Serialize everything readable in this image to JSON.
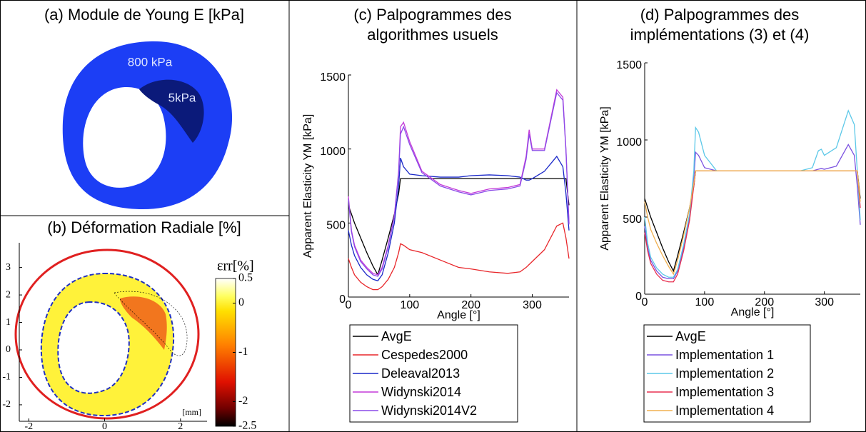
{
  "panel_a": {
    "title": "(a) Module de Young E [kPa]",
    "labels": [
      "800 kPa",
      "5kPa"
    ]
  },
  "chart_data": [
    {
      "type": "heatmap",
      "title": "(b) Déformation Radiale [%]",
      "colorbar_label": "εrr[%]",
      "unit_label": "[mm]",
      "xlim": [
        -2.25,
        2.7
      ],
      "xticks": [
        -2,
        0,
        2
      ],
      "ylim": [
        -2.6,
        3.9
      ],
      "yticks": [
        -2,
        -1,
        0,
        1,
        2,
        3
      ],
      "colorbar_lim": [
        -2.5,
        0.5
      ],
      "colorbar_ticks": [
        -2.5,
        -2,
        -1,
        0,
        0.5
      ]
    },
    {
      "type": "line",
      "title": [
        "(c) Palpogrammes des",
        "algorithmes usuels"
      ],
      "xlabel": "Angle [°]",
      "ylabel": "Apparent Elasticity YM [kPa]",
      "xlim": [
        0,
        360
      ],
      "xticks": [
        0,
        100,
        200,
        300
      ],
      "ylim": [
        0,
        1500
      ],
      "yticks": [
        0,
        500,
        1000,
        1500
      ],
      "x": [
        0,
        5,
        10,
        20,
        30,
        40,
        48,
        55,
        65,
        75,
        82,
        85,
        90,
        100,
        120,
        150,
        180,
        200,
        230,
        260,
        280,
        290,
        295,
        300,
        320,
        340,
        350,
        355,
        360
      ],
      "series": [
        {
          "name": "AvgE",
          "color": "#000000",
          "values": [
            620,
            560,
            500,
            400,
            300,
            210,
            150,
            250,
            400,
            560,
            700,
            800,
            800,
            800,
            800,
            800,
            800,
            800,
            800,
            800,
            800,
            800,
            800,
            800,
            800,
            800,
            800,
            800,
            620
          ]
        },
        {
          "name": "Cespedes2000",
          "color": "#e8262a",
          "values": [
            260,
            200,
            150,
            100,
            70,
            50,
            50,
            70,
            120,
            200,
            300,
            360,
            350,
            320,
            300,
            250,
            200,
            190,
            170,
            160,
            170,
            200,
            220,
            240,
            320,
            480,
            500,
            400,
            260
          ]
        },
        {
          "name": "Deleaval2013",
          "color": "#1a28c8",
          "values": [
            450,
            350,
            280,
            200,
            150,
            120,
            110,
            150,
            300,
            500,
            750,
            940,
            880,
            830,
            820,
            810,
            810,
            820,
            825,
            820,
            810,
            790,
            790,
            800,
            850,
            950,
            880,
            700,
            450
          ]
        },
        {
          "name": "Widynski2014",
          "color": "#c43ad8",
          "values": [
            680,
            450,
            350,
            250,
            200,
            160,
            150,
            200,
            350,
            550,
            850,
            1150,
            1180,
            1050,
            850,
            760,
            720,
            700,
            730,
            740,
            760,
            950,
            1130,
            1000,
            1000,
            1400,
            1350,
            1000,
            500
          ]
        },
        {
          "name": "Widynski2014V2",
          "color": "#8a4ae8",
          "values": [
            660,
            440,
            340,
            240,
            190,
            150,
            140,
            190,
            340,
            540,
            840,
            1100,
            1150,
            1030,
            840,
            750,
            710,
            690,
            720,
            730,
            750,
            930,
            1100,
            990,
            990,
            1380,
            1330,
            990,
            490
          ]
        }
      ]
    },
    {
      "type": "line",
      "title": [
        "(d) Palpogrammes des",
        "implémentations (3) et (4)"
      ],
      "xlabel": "Angle [°]",
      "ylabel": "Apparent Elasticity YM [kPa]",
      "xlim": [
        0,
        360
      ],
      "xticks": [
        0,
        100,
        200,
        300
      ],
      "ylim": [
        0,
        1500
      ],
      "yticks": [
        0,
        500,
        1000,
        1500
      ],
      "x": [
        0,
        5,
        10,
        20,
        30,
        40,
        48,
        55,
        65,
        75,
        82,
        85,
        90,
        100,
        120,
        150,
        180,
        200,
        230,
        260,
        280,
        290,
        295,
        300,
        320,
        340,
        350,
        355,
        360
      ],
      "series": [
        {
          "name": "AvgE",
          "color": "#000000",
          "values": [
            620,
            560,
            500,
            400,
            300,
            210,
            150,
            250,
            400,
            560,
            700,
            800,
            800,
            800,
            800,
            800,
            800,
            800,
            800,
            800,
            800,
            800,
            800,
            800,
            800,
            800,
            800,
            800,
            620
          ]
        },
        {
          "name": "Implementation 1",
          "color": "#7a50e0",
          "values": [
            440,
            300,
            220,
            150,
            110,
            100,
            100,
            150,
            300,
            500,
            750,
            920,
            900,
            820,
            800,
            800,
            800,
            800,
            800,
            800,
            800,
            810,
            815,
            810,
            830,
            970,
            900,
            700,
            450
          ]
        },
        {
          "name": "Implementation 2",
          "color": "#5cc8e8",
          "values": [
            500,
            330,
            240,
            170,
            130,
            110,
            110,
            160,
            320,
            520,
            800,
            1080,
            1050,
            900,
            800,
            800,
            800,
            800,
            800,
            800,
            820,
            930,
            940,
            900,
            950,
            1190,
            1100,
            800,
            480
          ]
        },
        {
          "name": "Implementation 3",
          "color": "#e83050",
          "values": [
            400,
            280,
            200,
            130,
            90,
            80,
            80,
            130,
            280,
            480,
            700,
            800,
            800,
            800,
            800,
            800,
            800,
            800,
            800,
            800,
            800,
            800,
            800,
            800,
            800,
            800,
            800,
            800,
            560
          ]
        },
        {
          "name": "Implementation 4",
          "color": "#f0b050",
          "values": [
            600,
            500,
            420,
            330,
            250,
            180,
            130,
            220,
            380,
            560,
            720,
            800,
            800,
            800,
            800,
            800,
            800,
            800,
            800,
            800,
            800,
            800,
            800,
            800,
            800,
            800,
            800,
            800,
            600
          ]
        }
      ]
    }
  ]
}
